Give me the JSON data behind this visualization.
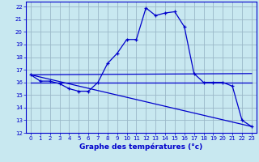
{
  "xlabel": "Graphe des températures (°c)",
  "xlim": [
    -0.5,
    23.5
  ],
  "ylim": [
    12,
    22.4
  ],
  "yticks": [
    12,
    13,
    14,
    15,
    16,
    17,
    18,
    19,
    20,
    21,
    22
  ],
  "xticks": [
    0,
    1,
    2,
    3,
    4,
    5,
    6,
    7,
    8,
    9,
    10,
    11,
    12,
    13,
    14,
    15,
    16,
    17,
    18,
    19,
    20,
    21,
    22,
    23
  ],
  "bg_color": "#c8e8f0",
  "grid_color": "#9ab8c8",
  "line_color": "#0000cc",
  "curve1_x": [
    0,
    1,
    2,
    3,
    4,
    5,
    6,
    7,
    8,
    9,
    10,
    11,
    12,
    13,
    14,
    15,
    16,
    17,
    18,
    19,
    20,
    21,
    22,
    23
  ],
  "curve1_y": [
    16.6,
    16.1,
    16.1,
    15.9,
    15.5,
    15.3,
    15.3,
    16.0,
    17.5,
    18.3,
    19.4,
    19.4,
    21.9,
    21.3,
    21.5,
    21.6,
    20.4,
    16.7,
    16.0,
    16.0,
    16.0,
    15.7,
    13.0,
    12.5
  ],
  "curve2_x": [
    0,
    23
  ],
  "curve2_y": [
    16.0,
    16.0
  ],
  "curve3_x": [
    0,
    23
  ],
  "curve3_y": [
    16.6,
    12.5
  ],
  "curve4_x": [
    0,
    23
  ],
  "curve4_y": [
    16.6,
    16.7
  ]
}
